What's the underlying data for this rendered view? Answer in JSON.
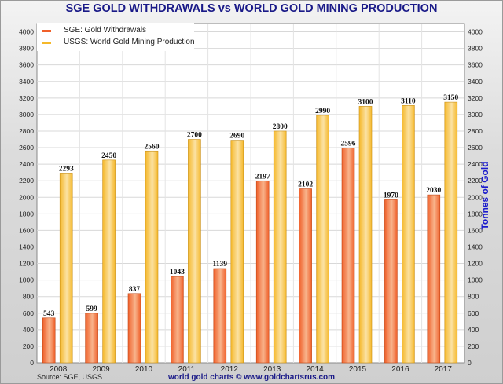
{
  "chart_data": {
    "type": "bar",
    "title": "SGE GOLD WITHDRAWALS vs WORLD GOLD MINING PRODUCTION",
    "ylabel": "Tonnes of Gold",
    "ylim": [
      0,
      4100
    ],
    "yticks": [
      0,
      200,
      400,
      600,
      800,
      1000,
      1200,
      1400,
      1600,
      1800,
      2000,
      2200,
      2400,
      2600,
      2800,
      3000,
      3200,
      3400,
      3600,
      3800,
      4000
    ],
    "grid": true,
    "legend_position": "top-left",
    "categories": [
      "2008",
      "2009",
      "2010",
      "2011",
      "2012",
      "2013",
      "2014",
      "2015",
      "2016",
      "2017"
    ],
    "series": [
      {
        "name": "SGE: Gold Withdrawals",
        "color": "#f0602a",
        "values": [
          543,
          599,
          837,
          1043,
          1139,
          2197,
          2102,
          2596,
          1970,
          2030
        ]
      },
      {
        "name": "USGS: World Gold Mining Production",
        "color": "#f5b82a",
        "values": [
          2293,
          2450,
          2560,
          2700,
          2690,
          2800,
          2990,
          3100,
          3110,
          3150
        ]
      }
    ],
    "source": "Source: SGE, USGS",
    "credit": "world gold charts © www.goldchartsrus.com"
  }
}
